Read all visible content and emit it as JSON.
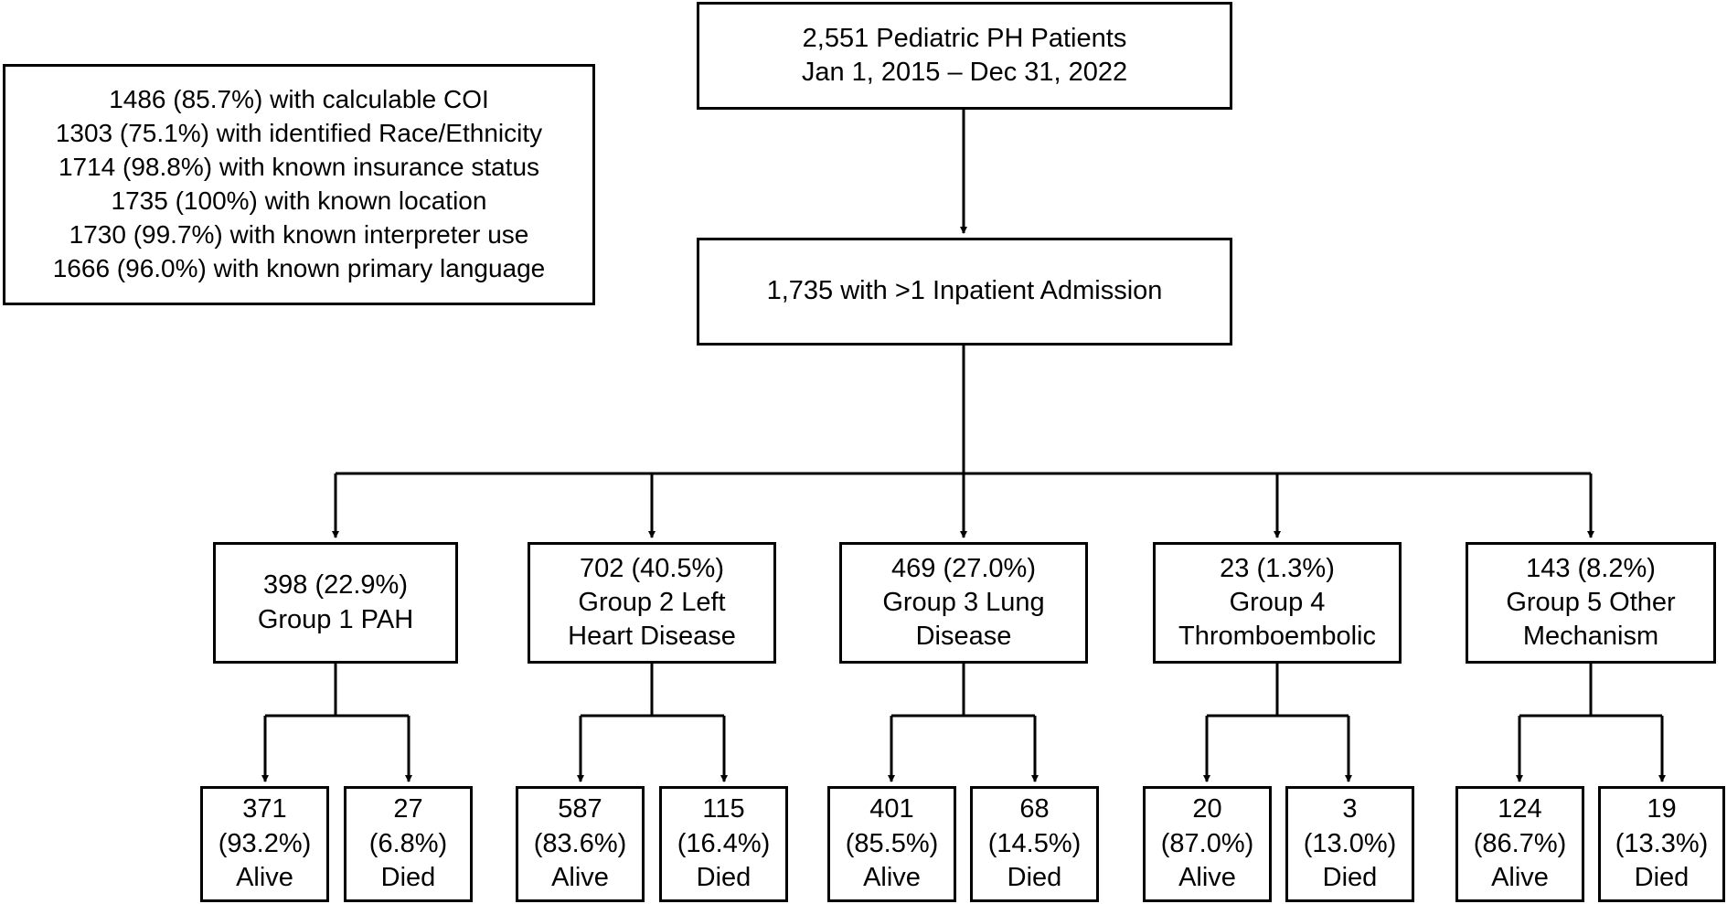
{
  "root": {
    "line1": "2,551 Pediatric PH Patients",
    "line2": "Jan 1, 2015 – Dec 31, 2022"
  },
  "cohort": {
    "label": "1,735 with >1 Inpatient Admission"
  },
  "completeness": {
    "lines": [
      "1486 (85.7%) with calculable COI",
      "1303 (75.1%) with identified Race/Ethnicity",
      "1714 (98.8%) with known insurance status",
      "1735 (100%) with known location",
      "1730 (99.7%) with known interpreter use",
      "1666 (96.0%) with known primary language"
    ]
  },
  "groups": [
    {
      "lines": [
        "398 (22.9%)",
        "Group 1 PAH"
      ],
      "alive": [
        "371",
        "(93.2%)",
        "Alive"
      ],
      "died": [
        "27",
        "(6.8%)",
        "Died"
      ]
    },
    {
      "lines": [
        "702 (40.5%)",
        "Group 2 Left",
        "Heart Disease"
      ],
      "alive": [
        "587",
        "(83.6%)",
        "Alive"
      ],
      "died": [
        "115",
        "(16.4%)",
        "Died"
      ]
    },
    {
      "lines": [
        "469 (27.0%)",
        "Group 3 Lung",
        "Disease"
      ],
      "alive": [
        "401",
        "(85.5%)",
        "Alive"
      ],
      "died": [
        "68",
        "(14.5%)",
        "Died"
      ]
    },
    {
      "lines": [
        "23 (1.3%)",
        "Group 4",
        "Thromboembolic"
      ],
      "alive": [
        "20",
        "(87.0%)",
        "Alive"
      ],
      "died": [
        "3",
        "(13.0%)",
        "Died"
      ]
    },
    {
      "lines": [
        "143 (8.2%)",
        "Group 5 Other",
        "Mechanism"
      ],
      "alive": [
        "124",
        "(86.7%)",
        "Alive"
      ],
      "died": [
        "19",
        "(13.3%)",
        "Died"
      ]
    }
  ]
}
